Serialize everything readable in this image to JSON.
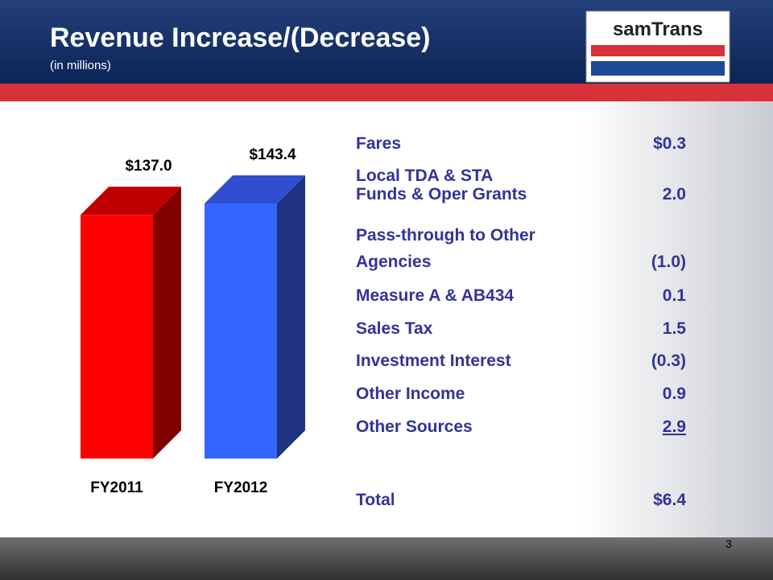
{
  "header": {
    "title": "Revenue Increase/(Decrease)",
    "subtitle": "(in millions)",
    "logo": "samTrans"
  },
  "chart_data": {
    "type": "bar3d",
    "categories": [
      "FY2011",
      "FY2012"
    ],
    "values": [
      137.0,
      143.4
    ],
    "value_labels": [
      "$137.0",
      "$143.4"
    ],
    "colors": [
      {
        "front": "#ff0000",
        "side": "#800000",
        "top": "#c00000"
      },
      {
        "front": "#3366ff",
        "side": "#1f3380",
        "top": "#2f4fd0"
      }
    ]
  },
  "table": {
    "rows": [
      {
        "label": [
          "Fares"
        ],
        "value": "$0.3"
      },
      {
        "label": [
          "Local TDA & STA",
          "Funds & Oper Grants"
        ],
        "value": "2.0"
      },
      {
        "label": [
          "Pass-through to Other",
          "Agencies"
        ],
        "value": "(1.0)"
      },
      {
        "label": [
          "Measure A & AB434"
        ],
        "value": "0.1"
      },
      {
        "label": [
          "Sales Tax"
        ],
        "value": "1.5"
      },
      {
        "label": [
          "Investment Interest"
        ],
        "value": "(0.3)"
      },
      {
        "label": [
          "Other Income"
        ],
        "value": "0.9"
      },
      {
        "label": [
          "Other Sources"
        ],
        "value": "2.9",
        "underline": true
      }
    ],
    "total": {
      "label": [
        "Total"
      ],
      "value": "$6.4"
    }
  },
  "page_number": "3"
}
